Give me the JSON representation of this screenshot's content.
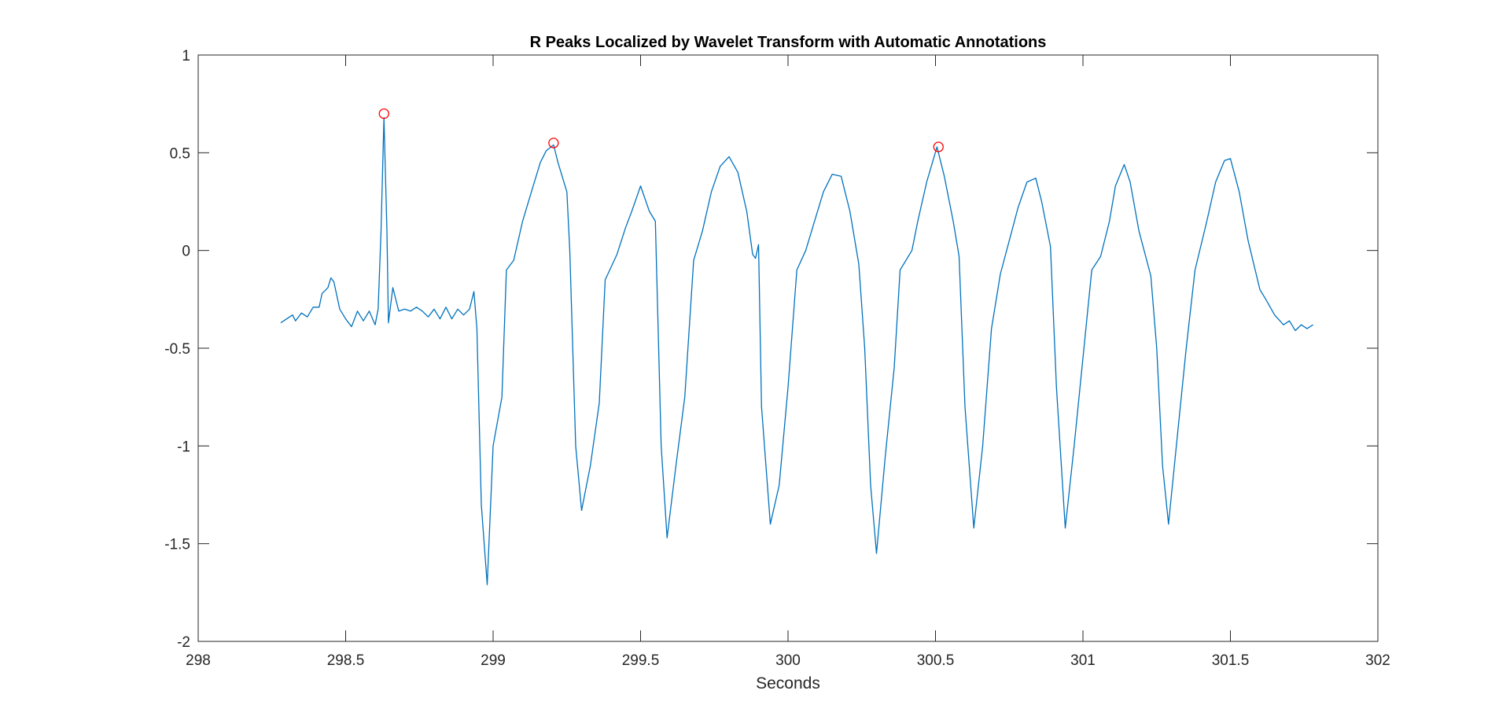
{
  "chart_data": {
    "type": "line",
    "title": "R Peaks Localized by Wavelet Transform with Automatic Annotations",
    "xlabel": "Seconds",
    "ylabel": "",
    "xlim": [
      298,
      302
    ],
    "ylim": [
      -2,
      1
    ],
    "xticks": [
      298,
      298.5,
      299,
      299.5,
      300,
      300.5,
      301,
      301.5,
      302
    ],
    "xtick_labels": [
      "298",
      "298.5",
      "299",
      "299.5",
      "300",
      "300.5",
      "301",
      "301.5",
      "302"
    ],
    "yticks": [
      -2,
      -1.5,
      -1,
      -0.5,
      0,
      0.5,
      1
    ],
    "ytick_labels": [
      "-2",
      "-1.5",
      "-1",
      "-0.5",
      "0",
      "0.5",
      "1"
    ],
    "grid": false,
    "legend": "none",
    "series": [
      {
        "style": "line",
        "color": "#0072BD",
        "points": [
          [
            298.28,
            -0.37
          ],
          [
            298.3,
            -0.35
          ],
          [
            298.32,
            -0.33
          ],
          [
            298.33,
            -0.36
          ],
          [
            298.35,
            -0.32
          ],
          [
            298.37,
            -0.34
          ],
          [
            298.39,
            -0.29
          ],
          [
            298.41,
            -0.29
          ],
          [
            298.42,
            -0.22
          ],
          [
            298.44,
            -0.19
          ],
          [
            298.45,
            -0.14
          ],
          [
            298.46,
            -0.16
          ],
          [
            298.48,
            -0.3
          ],
          [
            298.5,
            -0.35
          ],
          [
            298.52,
            -0.39
          ],
          [
            298.54,
            -0.31
          ],
          [
            298.56,
            -0.36
          ],
          [
            298.58,
            -0.31
          ],
          [
            298.6,
            -0.38
          ],
          [
            298.61,
            -0.3
          ],
          [
            298.62,
            0.1
          ],
          [
            298.63,
            0.68
          ],
          [
            298.64,
            0.1
          ],
          [
            298.645,
            -0.37
          ],
          [
            298.66,
            -0.19
          ],
          [
            298.68,
            -0.31
          ],
          [
            298.7,
            -0.3
          ],
          [
            298.72,
            -0.31
          ],
          [
            298.74,
            -0.29
          ],
          [
            298.76,
            -0.31
          ],
          [
            298.78,
            -0.34
          ],
          [
            298.8,
            -0.3
          ],
          [
            298.82,
            -0.35
          ],
          [
            298.84,
            -0.29
          ],
          [
            298.86,
            -0.35
          ],
          [
            298.88,
            -0.3
          ],
          [
            298.9,
            -0.33
          ],
          [
            298.92,
            -0.3
          ],
          [
            298.935,
            -0.21
          ],
          [
            298.945,
            -0.4
          ],
          [
            298.96,
            -1.3
          ],
          [
            298.98,
            -1.71
          ],
          [
            299.0,
            -1.0
          ],
          [
            299.03,
            -0.75
          ],
          [
            299.045,
            -0.1
          ],
          [
            299.07,
            -0.05
          ],
          [
            299.1,
            0.15
          ],
          [
            299.13,
            0.3
          ],
          [
            299.16,
            0.45
          ],
          [
            299.18,
            0.51
          ],
          [
            299.205,
            0.54
          ],
          [
            299.22,
            0.45
          ],
          [
            299.24,
            0.35
          ],
          [
            299.25,
            0.3
          ],
          [
            299.26,
            0.0
          ],
          [
            299.28,
            -1.0
          ],
          [
            299.3,
            -1.33
          ],
          [
            299.33,
            -1.1
          ],
          [
            299.36,
            -0.78
          ],
          [
            299.38,
            -0.15
          ],
          [
            299.42,
            -0.02
          ],
          [
            299.45,
            0.12
          ],
          [
            299.47,
            0.2
          ],
          [
            299.5,
            0.33
          ],
          [
            299.53,
            0.2
          ],
          [
            299.55,
            0.15
          ],
          [
            299.57,
            -1.0
          ],
          [
            299.59,
            -1.47
          ],
          [
            299.62,
            -1.1
          ],
          [
            299.65,
            -0.75
          ],
          [
            299.68,
            -0.05
          ],
          [
            299.71,
            0.1
          ],
          [
            299.74,
            0.3
          ],
          [
            299.77,
            0.43
          ],
          [
            299.8,
            0.48
          ],
          [
            299.83,
            0.4
          ],
          [
            299.86,
            0.2
          ],
          [
            299.88,
            -0.02
          ],
          [
            299.89,
            -0.04
          ],
          [
            299.9,
            0.03
          ],
          [
            299.91,
            -0.8
          ],
          [
            299.94,
            -1.4
          ],
          [
            299.97,
            -1.2
          ],
          [
            300.0,
            -0.7
          ],
          [
            300.03,
            -0.1
          ],
          [
            300.06,
            0.0
          ],
          [
            300.09,
            0.15
          ],
          [
            300.12,
            0.3
          ],
          [
            300.15,
            0.39
          ],
          [
            300.18,
            0.38
          ],
          [
            300.21,
            0.2
          ],
          [
            300.24,
            -0.07
          ],
          [
            300.26,
            -0.5
          ],
          [
            300.28,
            -1.2
          ],
          [
            300.3,
            -1.55
          ],
          [
            300.33,
            -1.05
          ],
          [
            300.36,
            -0.6
          ],
          [
            300.38,
            -0.1
          ],
          [
            300.42,
            0.0
          ],
          [
            300.44,
            0.15
          ],
          [
            300.47,
            0.35
          ],
          [
            300.505,
            0.53
          ],
          [
            300.53,
            0.38
          ],
          [
            300.56,
            0.15
          ],
          [
            300.58,
            -0.03
          ],
          [
            300.6,
            -0.8
          ],
          [
            300.63,
            -1.42
          ],
          [
            300.66,
            -1.0
          ],
          [
            300.69,
            -0.4
          ],
          [
            300.72,
            -0.12
          ],
          [
            300.75,
            0.05
          ],
          [
            300.78,
            0.22
          ],
          [
            300.81,
            0.35
          ],
          [
            300.84,
            0.37
          ],
          [
            300.86,
            0.25
          ],
          [
            300.89,
            0.02
          ],
          [
            300.91,
            -0.7
          ],
          [
            300.94,
            -1.42
          ],
          [
            300.97,
            -1.0
          ],
          [
            301.0,
            -0.55
          ],
          [
            301.03,
            -0.1
          ],
          [
            301.06,
            -0.03
          ],
          [
            301.09,
            0.15
          ],
          [
            301.11,
            0.33
          ],
          [
            301.14,
            0.44
          ],
          [
            301.16,
            0.35
          ],
          [
            301.19,
            0.1
          ],
          [
            301.23,
            -0.13
          ],
          [
            301.25,
            -0.5
          ],
          [
            301.27,
            -1.1
          ],
          [
            301.29,
            -1.4
          ],
          [
            301.32,
            -0.95
          ],
          [
            301.35,
            -0.5
          ],
          [
            301.38,
            -0.1
          ],
          [
            301.42,
            0.15
          ],
          [
            301.45,
            0.35
          ],
          [
            301.48,
            0.46
          ],
          [
            301.5,
            0.47
          ],
          [
            301.53,
            0.3
          ],
          [
            301.56,
            0.05
          ],
          [
            301.6,
            -0.2
          ],
          [
            301.62,
            -0.25
          ],
          [
            301.65,
            -0.33
          ],
          [
            301.68,
            -0.38
          ],
          [
            301.7,
            -0.36
          ],
          [
            301.72,
            -0.41
          ],
          [
            301.74,
            -0.38
          ],
          [
            301.76,
            -0.4
          ],
          [
            301.78,
            -0.38
          ]
        ]
      },
      {
        "style": "markers",
        "marker": "circle",
        "color": "#FF0000",
        "points": [
          [
            298.63,
            0.7
          ],
          [
            299.205,
            0.55
          ],
          [
            300.51,
            0.53
          ]
        ]
      }
    ]
  }
}
